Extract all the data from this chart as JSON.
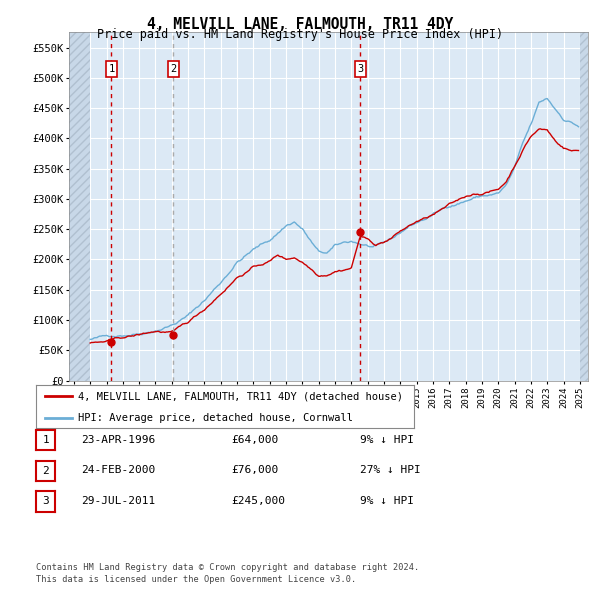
{
  "title": "4, MELVILL LANE, FALMOUTH, TR11 4DY",
  "subtitle": "Price paid vs. HM Land Registry's House Price Index (HPI)",
  "ylim": [
    0,
    575000
  ],
  "yticks": [
    0,
    50000,
    100000,
    150000,
    200000,
    250000,
    300000,
    350000,
    400000,
    450000,
    500000,
    550000
  ],
  "ytick_labels": [
    "£0",
    "£50K",
    "£100K",
    "£150K",
    "£200K",
    "£250K",
    "£300K",
    "£350K",
    "£400K",
    "£450K",
    "£500K",
    "£550K"
  ],
  "xlim_start": 1993.7,
  "xlim_end": 2025.5,
  "hpi_color": "#6baed6",
  "price_color": "#cc0000",
  "sale_marker_color": "#cc0000",
  "dashed_line_color_red": "#cc0000",
  "dashed_line_color_gray": "#999999",
  "background_plot": "#dce9f5",
  "grid_color": "#ffffff",
  "sales": [
    {
      "year": 1996.3,
      "price": 64000,
      "label": "1",
      "dash_color": "#cc0000"
    },
    {
      "year": 2000.1,
      "price": 76000,
      "label": "2",
      "dash_color": "#aaaaaa"
    },
    {
      "year": 2011.55,
      "price": 245000,
      "label": "3",
      "dash_color": "#cc0000"
    }
  ],
  "legend_entries": [
    {
      "label": "4, MELVILL LANE, FALMOUTH, TR11 4DY (detached house)",
      "color": "#cc0000"
    },
    {
      "label": "HPI: Average price, detached house, Cornwall",
      "color": "#6baed6"
    }
  ],
  "table_rows": [
    {
      "num": "1",
      "date": "23-APR-1996",
      "price": "£64,000",
      "pct": "9% ↓ HPI"
    },
    {
      "num": "2",
      "date": "24-FEB-2000",
      "price": "£76,000",
      "pct": "27% ↓ HPI"
    },
    {
      "num": "3",
      "date": "29-JUL-2011",
      "price": "£245,000",
      "pct": "9% ↓ HPI"
    }
  ],
  "footer": "Contains HM Land Registry data © Crown copyright and database right 2024.\nThis data is licensed under the Open Government Licence v3.0."
}
